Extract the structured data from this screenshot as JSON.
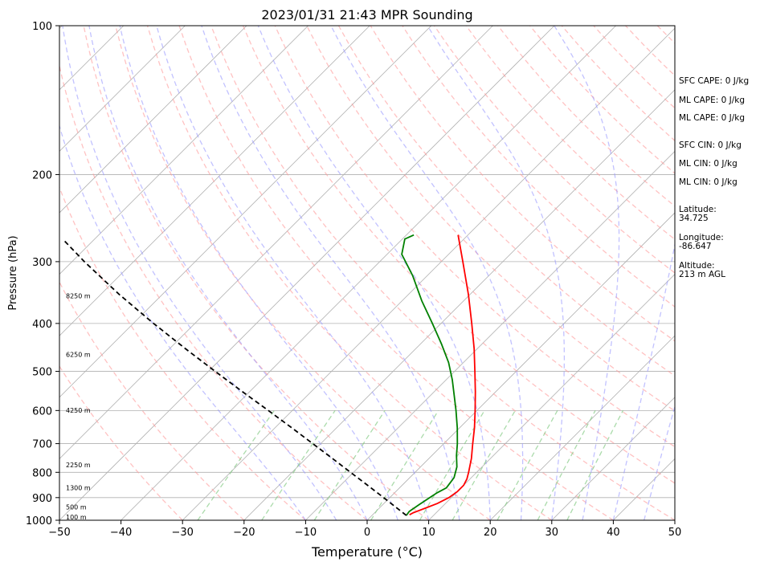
{
  "chart_data": {
    "type": "line",
    "title": "2023/01/31 21:43 MPR Sounding",
    "xlabel": "Temperature (°C)",
    "ylabel": "Pressure (hPa)",
    "xlim": [
      -50,
      50
    ],
    "ylim": [
      1000,
      100
    ],
    "y_scale": "log",
    "x_ticks": [
      -50,
      -40,
      -30,
      -20,
      -10,
      0,
      10,
      20,
      30,
      40,
      50
    ],
    "y_ticks": [
      100,
      200,
      300,
      400,
      500,
      600,
      700,
      800,
      900,
      1000
    ],
    "grid": "pressure",
    "skew_t": true,
    "series": [
      {
        "color": "#ff0000",
        "style": "solid",
        "points": [
          {
            "p": 975,
            "t": 6.0
          },
          {
            "p": 965,
            "t": 6.3
          },
          {
            "p": 945,
            "t": 7.5
          },
          {
            "p": 925,
            "t": 8.7
          },
          {
            "p": 900,
            "t": 9.6
          },
          {
            "p": 875,
            "t": 10.0
          },
          {
            "p": 850,
            "t": 10.0
          },
          {
            "p": 825,
            "t": 9.5
          },
          {
            "p": 800,
            "t": 8.7
          },
          {
            "p": 750,
            "t": 6.9
          },
          {
            "p": 700,
            "t": 4.7
          },
          {
            "p": 650,
            "t": 2.4
          },
          {
            "p": 600,
            "t": -0.3
          },
          {
            "p": 550,
            "t": -3.3
          },
          {
            "p": 500,
            "t": -6.7
          },
          {
            "p": 450,
            "t": -10.5
          },
          {
            "p": 400,
            "t": -15.0
          },
          {
            "p": 350,
            "t": -20.2
          },
          {
            "p": 300,
            "t": -26.5
          },
          {
            "p": 265,
            "t": -31.6
          }
        ]
      },
      {
        "color": "#008000",
        "style": "solid",
        "points": [
          {
            "p": 978,
            "t": 5.6
          },
          {
            "p": 960,
            "t": 5.4
          },
          {
            "p": 930,
            "t": 5.9
          },
          {
            "p": 900,
            "t": 6.5
          },
          {
            "p": 880,
            "t": 6.9
          },
          {
            "p": 860,
            "t": 7.6
          },
          {
            "p": 840,
            "t": 7.4
          },
          {
            "p": 820,
            "t": 7.2
          },
          {
            "p": 780,
            "t": 5.9
          },
          {
            "p": 740,
            "t": 4.0
          },
          {
            "p": 700,
            "t": 2.2
          },
          {
            "p": 650,
            "t": -0.4
          },
          {
            "p": 600,
            "t": -3.4
          },
          {
            "p": 560,
            "t": -6.1
          },
          {
            "p": 520,
            "t": -9.0
          },
          {
            "p": 480,
            "t": -12.4
          },
          {
            "p": 440,
            "t": -16.6
          },
          {
            "p": 400,
            "t": -21.4
          },
          {
            "p": 360,
            "t": -26.8
          },
          {
            "p": 320,
            "t": -32.4
          },
          {
            "p": 290,
            "t": -37.6
          },
          {
            "p": 270,
            "t": -39.6
          },
          {
            "p": 265,
            "t": -38.8
          }
        ]
      },
      {
        "color": "#000000",
        "style": "dashed",
        "points": [
          {
            "p": 978,
            "t": 5.6
          },
          {
            "p": 950,
            "t": 3.3
          },
          {
            "p": 900,
            "t": -1.0
          },
          {
            "p": 850,
            "t": -5.6
          },
          {
            "p": 800,
            "t": -10.5
          },
          {
            "p": 750,
            "t": -15.7
          },
          {
            "p": 700,
            "t": -21.3
          },
          {
            "p": 650,
            "t": -27.3
          },
          {
            "p": 600,
            "t": -33.9
          },
          {
            "p": 550,
            "t": -41.1
          },
          {
            "p": 500,
            "t": -48.9
          },
          {
            "p": 450,
            "t": -57.4
          },
          {
            "p": 400,
            "t": -66.7
          },
          {
            "p": 350,
            "t": -76.9
          },
          {
            "p": 300,
            "t": -88.0
          },
          {
            "p": 270,
            "t": -95.2
          }
        ]
      }
    ],
    "height_labels": [
      {
        "label": "100 m",
        "p": 988
      },
      {
        "label": "500 m",
        "p": 943
      },
      {
        "label": "1300 m",
        "p": 862
      },
      {
        "label": "2250 m",
        "p": 776
      },
      {
        "label": "4250 m",
        "p": 602
      },
      {
        "label": "6250 m",
        "p": 464
      },
      {
        "label": "8250 m",
        "p": 353
      }
    ],
    "annotations": [
      "SFC CAPE: 0 J/kg",
      "ML CAPE: 0 J/kg",
      "ML CAPE: 0 J/kg",
      "SFC CIN: 0 J/kg",
      "ML CIN: 0 J/kg",
      "ML CIN: 0 J/kg",
      "Latitude:",
      "34.725",
      "Longitude:",
      "-86.647",
      "Altitude:",
      "213 m AGL"
    ],
    "colors": {
      "isotherm": "#b0b0b0",
      "dry_adiabat": "#ff9999",
      "moist_adiabat": "#9999ff",
      "mixing_ratio": "#88cc88",
      "pressure_grid": "#b0b0b0"
    }
  }
}
